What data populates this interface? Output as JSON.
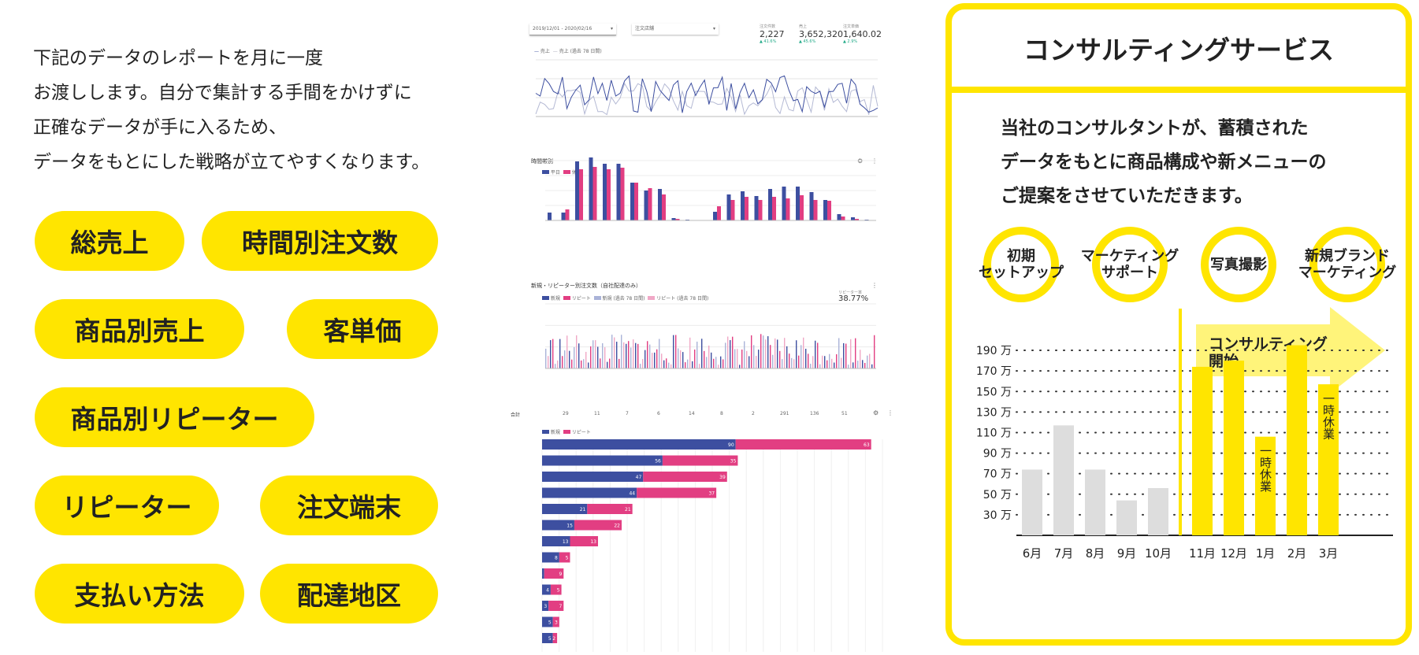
{
  "intro": {
    "lines": [
      "下記のデータのレポートを月に一度",
      "お渡しします。自分で集計する手間をかけずに",
      "正確なデータが手に入るため、",
      "データをもとにした戦略が立てやすくなります。"
    ]
  },
  "report_items": [
    "総売上",
    "時間別注文数",
    "商品別売上",
    "客単価",
    "商品別リピーター",
    "リピーター",
    "注文端末",
    "支払い方法",
    "配達地区"
  ],
  "dashboard": {
    "date_range": "2019/12/01 - 2020/02/16",
    "filter": "注文店舗",
    "kpis": [
      {
        "label": "注文件数",
        "value": "2,227",
        "change": "▲ 41.6%"
      },
      {
        "label": "売上",
        "value": "3,652,320",
        "change": "▲ 45.6%"
      },
      {
        "label": "注文単価",
        "value": "1,640.02",
        "change": "▲ 2.9%"
      }
    ],
    "line_legend": [
      "売上",
      "売上 (過去 78 日間)"
    ],
    "hourly_title": "時間帯別",
    "hourly_legend": [
      "平日",
      "休日"
    ],
    "repeat_title": "新規・リピーター別注文数（自社配達のみ）",
    "repeat_legend": [
      "新規",
      "リピート",
      "新規 (過去 78 日間)",
      "リピート (過去 78 日間)"
    ],
    "repeat_rate_label": "リピーター率",
    "repeat_rate": "38.77%",
    "bar_legend": [
      "新規",
      "リピート"
    ],
    "total_label": "合計",
    "header_numbers": [
      "29",
      "11",
      "7",
      "6",
      "14",
      "8",
      "2",
      "291",
      "136",
      "51"
    ],
    "hbar_new": [
      90,
      56,
      47,
      44,
      21,
      15,
      13,
      8,
      1,
      4,
      3,
      5,
      5
    ],
    "hbar_repeat": [
      63,
      35,
      39,
      37,
      21,
      22,
      13,
      5,
      9,
      5,
      7,
      3,
      2
    ]
  },
  "consult": {
    "title": "コンサルティングサービス",
    "text_lines": [
      "当社のコンサルタントが、蓄積された",
      "データをもとに商品構成や新メニューの",
      "ご提案をさせていただきます。"
    ],
    "steps": [
      {
        "lines": [
          "初期",
          "セットアップ"
        ]
      },
      {
        "lines": [
          "マーケティング",
          "サポート"
        ]
      },
      {
        "lines": [
          "写真撮影"
        ]
      },
      {
        "lines": [
          "新規ブランド",
          "マーケティング"
        ]
      }
    ],
    "arrow_label": [
      "コンサルティング",
      "開始"
    ],
    "accent_color": "#ffe500",
    "chart_data": {
      "type": "bar",
      "categories": [
        "6月",
        "7月",
        "8月",
        "9月",
        "10月",
        "11月",
        "12月",
        "1月",
        "2月",
        "3月"
      ],
      "values": [
        74,
        117,
        74,
        44,
        56,
        174,
        180,
        106,
        195,
        157
      ],
      "y_ticks": [
        "30 万",
        "50 万",
        "70 万",
        "90 万",
        "110 万",
        "130 万",
        "150 万",
        "170 万",
        "190 万"
      ],
      "ylim": [
        10,
        200
      ],
      "highlight_from_index": 5,
      "colors": {
        "before": "#dddddd",
        "after": "#ffe500"
      },
      "annotations": [
        {
          "category": "1月",
          "text": "一時休業"
        },
        {
          "category": "3月",
          "text": "一時休業"
        }
      ]
    }
  }
}
